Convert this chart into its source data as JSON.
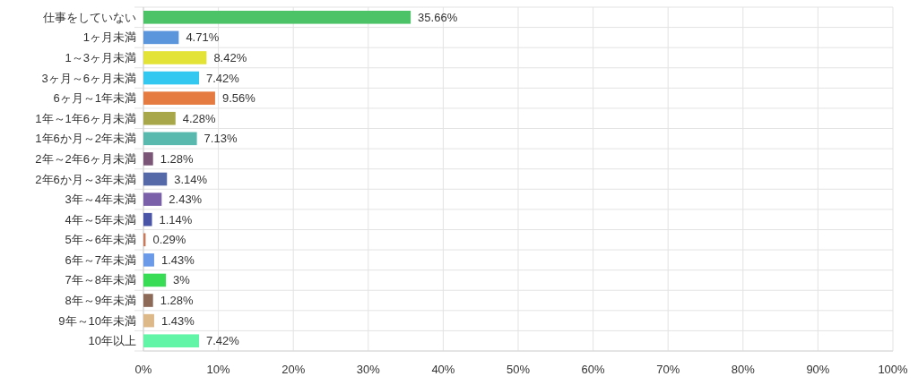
{
  "chart_data": {
    "type": "bar",
    "orientation": "horizontal",
    "categories": [
      "仕事をしていない",
      "1ヶ月未満",
      "1～3ヶ月未満",
      "3ヶ月～6ヶ月未満",
      "6ヶ月～1年未満",
      "1年～1年6ヶ月未満",
      "1年6か月～2年未満",
      "2年～2年6ヶ月未満",
      "2年6か月～3年未満",
      "3年～4年未満",
      "4年～5年未満",
      "5年～6年未満",
      "6年～7年未満",
      "7年～8年未満",
      "8年～9年未満",
      "9年～10年未満",
      "10年以上"
    ],
    "values": [
      35.66,
      4.71,
      8.42,
      7.42,
      9.56,
      4.28,
      7.13,
      1.28,
      3.14,
      2.43,
      1.14,
      0.29,
      1.43,
      3,
      1.28,
      1.43,
      7.42
    ],
    "value_labels": [
      "35.66%",
      "4.71%",
      "8.42%",
      "7.42%",
      "9.56%",
      "4.28%",
      "7.13%",
      "1.28%",
      "3.14%",
      "2.43%",
      "1.14%",
      "0.29%",
      "1.43%",
      "3%",
      "1.28%",
      "1.43%",
      "7.42%"
    ],
    "colors": [
      "#4dc368",
      "#5b95dc",
      "#e3e337",
      "#33c8ef",
      "#e57b40",
      "#a8a84a",
      "#5ab9ae",
      "#7b5676",
      "#5568a8",
      "#7a60a8",
      "#4b55a8",
      "#c87a5a",
      "#6a9ae8",
      "#38dc55",
      "#8d6a58",
      "#ddb98a",
      "#62f5a8"
    ],
    "xlim": [
      0,
      100
    ],
    "xticks": [
      {
        "value": 0,
        "label": "0%"
      },
      {
        "value": 10,
        "label": "10%"
      },
      {
        "value": 20,
        "label": "20%"
      },
      {
        "value": 30,
        "label": "30%"
      },
      {
        "value": 40,
        "label": "40%"
      },
      {
        "value": 50,
        "label": "50%"
      },
      {
        "value": 60,
        "label": "60%"
      },
      {
        "value": 70,
        "label": "70%"
      },
      {
        "value": 80,
        "label": "80%"
      },
      {
        "value": 90,
        "label": "90%"
      },
      {
        "value": 100,
        "label": "100%"
      }
    ],
    "grid": true
  }
}
